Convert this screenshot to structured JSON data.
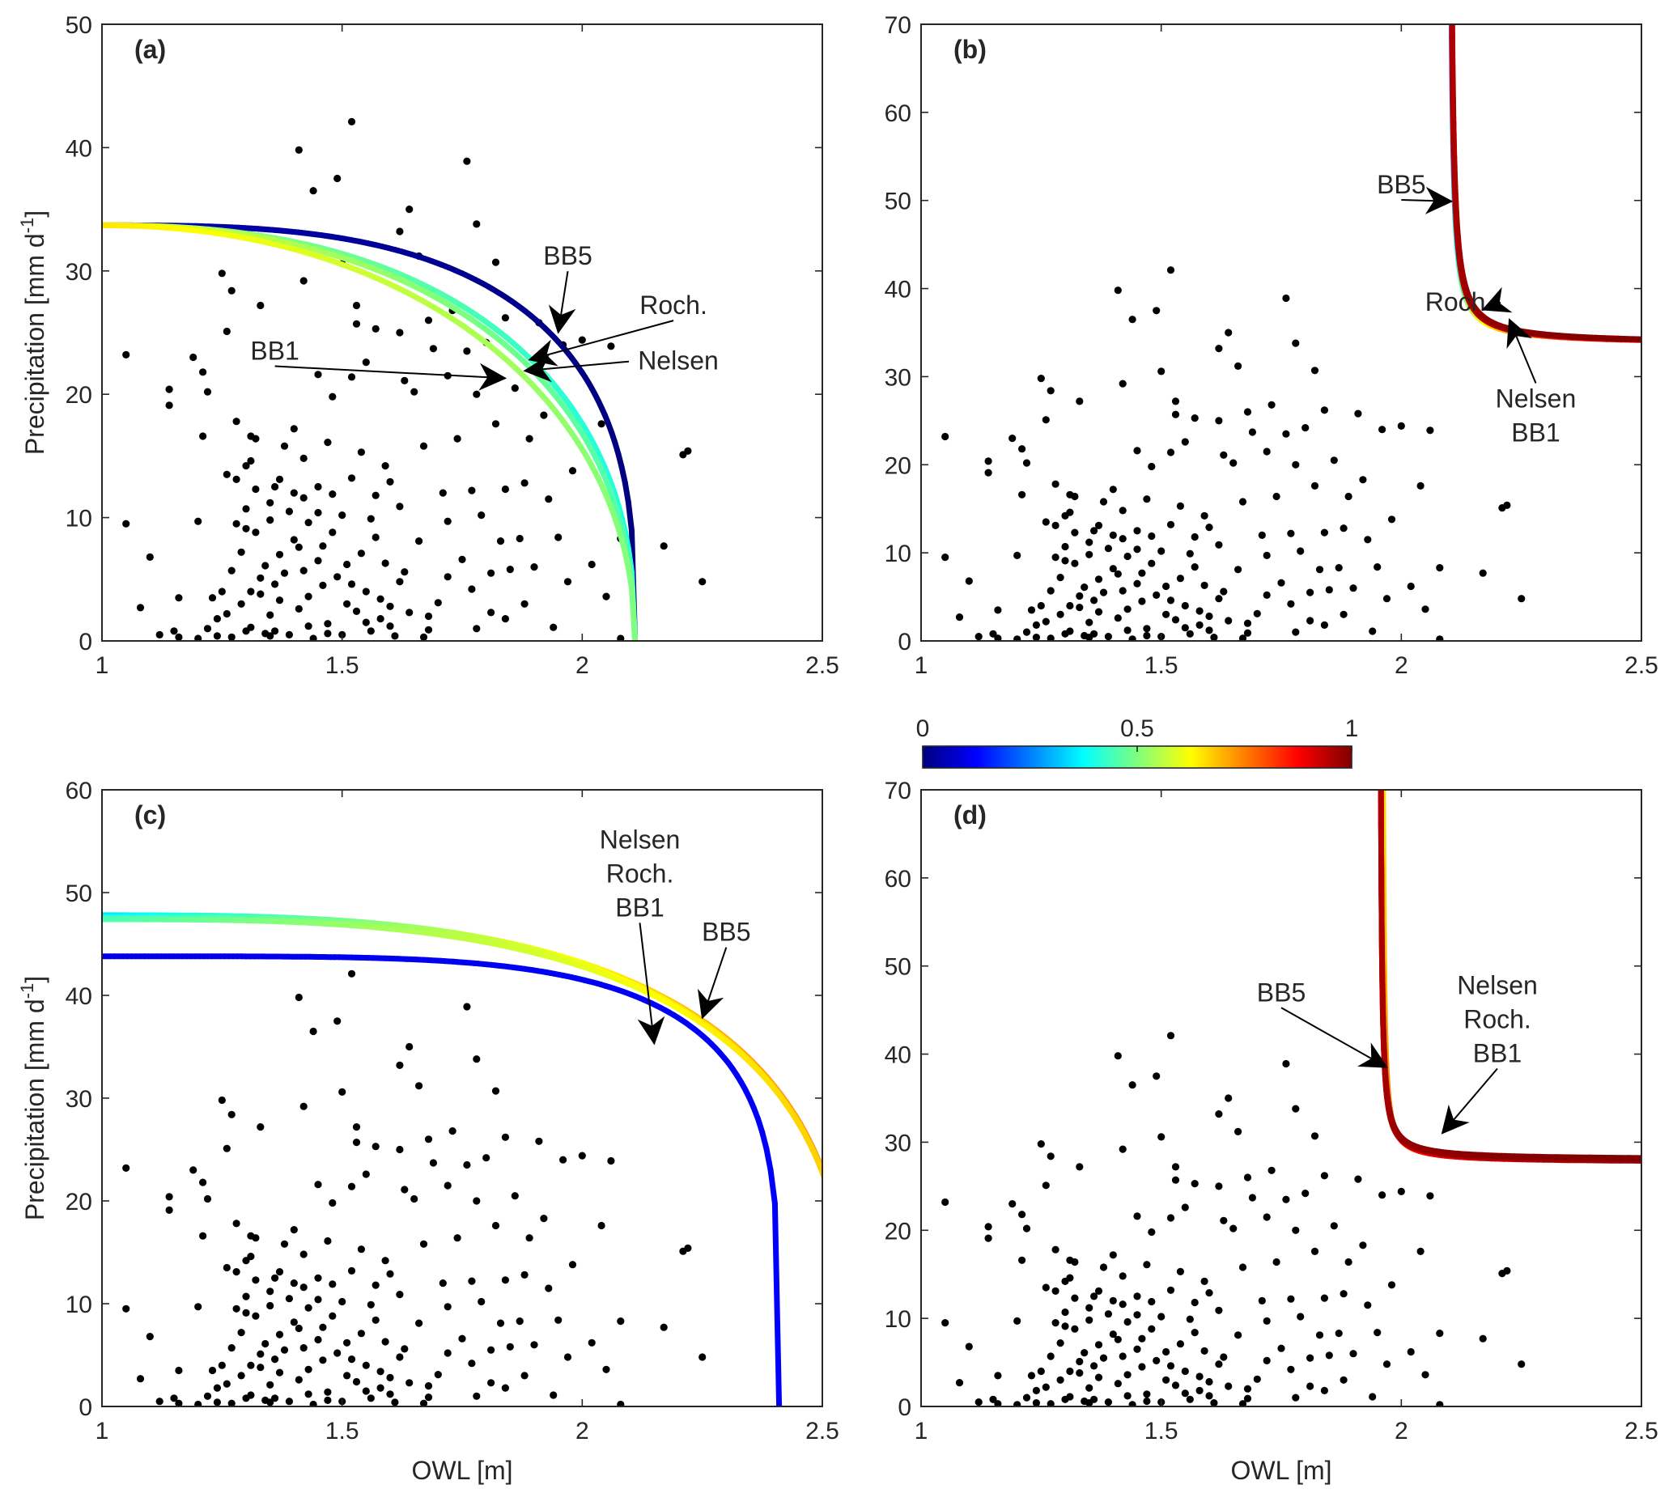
{
  "colors": {
    "points": "#000000",
    "axis": "#262626",
    "colormap": [
      "#00007f",
      "#0000ff",
      "#007fff",
      "#00ffff",
      "#7fff7f",
      "#ffff00",
      "#ff7f00",
      "#ff0000",
      "#7f0000"
    ]
  },
  "colorbar": {
    "ticks": [
      0,
      0.5,
      1
    ],
    "tick_labels": [
      "0",
      "0.5",
      "1"
    ],
    "min": 0,
    "max": 1
  },
  "chart_data": [
    {
      "id": "a",
      "type": "scatter",
      "panel_label": "(a)",
      "xlabel": "",
      "ylabel": "Precipitation [mm d",
      "ylabel_sup": "-1",
      "ylabel_close": "]",
      "xlim": [
        1,
        2.5
      ],
      "ylim": [
        0,
        50
      ],
      "xticks": [
        1,
        1.5,
        2,
        2.5
      ],
      "xtick_labels": [
        "1",
        "1.5",
        "2",
        "2.5"
      ],
      "yticks": [
        0,
        10,
        20,
        30,
        40,
        50
      ],
      "ytick_labels": [
        "0",
        "10",
        "20",
        "30",
        "40",
        "50"
      ],
      "curves": [
        {
          "name": "BB5",
          "shape": "quarter",
          "px": 2.11,
          "py": 33.7,
          "n": 3.0,
          "c_start": 0.05,
          "c_end": 0.0
        },
        {
          "name": "Roch.",
          "shape": "quarter",
          "px": 2.11,
          "py": 33.7,
          "n": 2.35,
          "c_start": 0.55,
          "c_end": 0.4
        },
        {
          "name": "Nelsen",
          "shape": "quarter",
          "px": 2.11,
          "py": 33.7,
          "n": 2.25,
          "c_start": 0.6,
          "c_end": 0.45
        },
        {
          "name": "BB1",
          "shape": "quarter",
          "px": 2.11,
          "py": 33.7,
          "n": 2.1,
          "c_start": 0.65,
          "c_end": 0.5
        }
      ],
      "annotations": [
        {
          "text": "BB5",
          "tx": 1.97,
          "ty": 30.5,
          "ax": 1.95,
          "ay": 25.0
        },
        {
          "text": "Roch.",
          "tx": 2.19,
          "ty": 26.5,
          "ax": 1.89,
          "ay": 22.8
        },
        {
          "text": "Nelsen",
          "tx": 2.2,
          "ty": 22.0,
          "ax": 1.88,
          "ay": 21.9
        },
        {
          "text": "BB1",
          "tx": 1.36,
          "ty": 22.8,
          "ax": 1.84,
          "ay": 21.3
        }
      ]
    },
    {
      "id": "b",
      "type": "scatter",
      "panel_label": "(b)",
      "xlabel": "",
      "ylabel": "",
      "xlim": [
        1,
        2.5
      ],
      "ylim": [
        0,
        70
      ],
      "xticks": [
        1,
        1.5,
        2,
        2.5
      ],
      "xtick_labels": [
        "1",
        "1.5",
        "2",
        "2.5"
      ],
      "yticks": [
        0,
        10,
        20,
        30,
        40,
        50,
        60,
        70
      ],
      "ytick_labels": [
        "0",
        "10",
        "20",
        "30",
        "40",
        "50",
        "60",
        "70"
      ],
      "curves": [
        {
          "name": "BB5",
          "shape": "hyperbola",
          "px": 2.1,
          "py": 33.7,
          "k": 0.18,
          "c_start": 0.15,
          "c_end": 0.92
        },
        {
          "name": "Roch.",
          "shape": "hyperbola",
          "px": 2.1,
          "py": 33.7,
          "k": 0.2,
          "c_start": 0.9,
          "c_end": 0.95
        },
        {
          "name": "Nelsen",
          "shape": "hyperbola",
          "px": 2.1,
          "py": 33.7,
          "k": 0.21,
          "c_start": 0.92,
          "c_end": 0.97
        },
        {
          "name": "BB1",
          "shape": "hyperbola",
          "px": 2.1,
          "py": 33.7,
          "k": 0.22,
          "c_start": 0.95,
          "c_end": 1.0
        }
      ],
      "annotations": [
        {
          "text": "BB5",
          "tx": 2.0,
          "ty": 50.8,
          "ax": 2.105,
          "ay": 49.9
        },
        {
          "text": "Roch.",
          "tx": 2.12,
          "ty": 37.5,
          "ax": 2.17,
          "ay": 37.6
        },
        {
          "text": "Nelsen",
          "text2": "BB1",
          "tx": 2.28,
          "ty": 26.5,
          "ax": 2.225,
          "ay": 36.5
        }
      ]
    },
    {
      "id": "c",
      "type": "scatter",
      "panel_label": "(c)",
      "xlabel": "OWL [m]",
      "ylabel": "Precipitation [mm d",
      "ylabel_sup": "-1",
      "ylabel_close": "]",
      "xlim": [
        1,
        2.5
      ],
      "ylim": [
        0,
        60
      ],
      "xticks": [
        1,
        1.5,
        2,
        2.5
      ],
      "xtick_labels": [
        "1",
        "1.5",
        "2",
        "2.5"
      ],
      "yticks": [
        0,
        10,
        20,
        30,
        40,
        50,
        60
      ],
      "ytick_labels": [
        "0",
        "10",
        "20",
        "30",
        "40",
        "50",
        "60"
      ],
      "curves": [
        {
          "name": "BB5",
          "shape": "quarter",
          "px": 2.41,
          "py": 43.8,
          "n": 4.5,
          "c_start": 0.1,
          "c_end": 0.12
        },
        {
          "name": "Roch.",
          "shape": "quarter",
          "px": 2.56,
          "py": 47.8,
          "n": 3.0,
          "c_start": 0.35,
          "c_end": 0.78
        },
        {
          "name": "Nelsen",
          "shape": "quarter",
          "px": 2.56,
          "py": 47.6,
          "n": 3.0,
          "c_start": 0.4,
          "c_end": 0.72
        },
        {
          "name": "BB1",
          "shape": "quarter",
          "px": 2.56,
          "py": 47.4,
          "n": 3.0,
          "c_start": 0.45,
          "c_end": 0.68
        }
      ],
      "annotations": [
        {
          "text": "Nelsen",
          "text2": "Roch.",
          "text3": "BB1",
          "tx": 2.12,
          "ty": 54.3,
          "ax": 2.15,
          "ay": 35.3
        },
        {
          "text": "BB5",
          "tx": 2.3,
          "ty": 45.3,
          "ax": 2.25,
          "ay": 37.8
        }
      ]
    },
    {
      "id": "d",
      "type": "scatter",
      "panel_label": "(d)",
      "xlabel": "OWL [m]",
      "ylabel": "",
      "xlim": [
        1,
        2.5
      ],
      "ylim": [
        0,
        70
      ],
      "xticks": [
        1,
        1.5,
        2,
        2.5
      ],
      "xtick_labels": [
        "1",
        "1.5",
        "2",
        "2.5"
      ],
      "yticks": [
        0,
        10,
        20,
        30,
        40,
        50,
        60,
        70
      ],
      "ytick_labels": [
        "0",
        "10",
        "20",
        "30",
        "40",
        "50",
        "60",
        "70"
      ],
      "curves": [
        {
          "name": "BB5",
          "shape": "hyperbola",
          "px": 1.96,
          "py": 27.7,
          "k": 0.1,
          "c_start": 0.65,
          "c_end": 0.98
        },
        {
          "name": "Roch.",
          "shape": "hyperbola",
          "px": 1.955,
          "py": 27.8,
          "k": 0.11,
          "c_start": 0.9,
          "c_end": 0.97
        },
        {
          "name": "Nelsen",
          "shape": "hyperbola",
          "px": 1.955,
          "py": 27.9,
          "k": 0.11,
          "c_start": 0.92,
          "c_end": 0.99
        },
        {
          "name": "BB1",
          "shape": "hyperbola",
          "px": 1.955,
          "py": 28.0,
          "k": 0.115,
          "c_start": 0.95,
          "c_end": 1.0
        }
      ],
      "annotations": [
        {
          "text": "BB5",
          "tx": 1.75,
          "ty": 46.0,
          "ax": 1.97,
          "ay": 38.5
        },
        {
          "text": "Nelsen",
          "text2": "Roch.",
          "text3": "BB1",
          "tx": 2.2,
          "ty": 46.8,
          "ax": 2.085,
          "ay": 31.0
        }
      ]
    }
  ],
  "scatter_points": [
    [
      1.05,
      23.2
    ],
    [
      1.05,
      9.5
    ],
    [
      1.08,
      2.7
    ],
    [
      1.1,
      6.8
    ],
    [
      1.12,
      0.5
    ],
    [
      1.14,
      20.4
    ],
    [
      1.14,
      19.1
    ],
    [
      1.15,
      0.8
    ],
    [
      1.16,
      3.5
    ],
    [
      1.16,
      0.3
    ],
    [
      1.19,
      23.0
    ],
    [
      1.2,
      9.7
    ],
    [
      1.21,
      16.6
    ],
    [
      1.21,
      21.8
    ],
    [
      1.22,
      20.2
    ],
    [
      1.22,
      1.0
    ],
    [
      1.23,
      3.5
    ],
    [
      1.24,
      1.8
    ],
    [
      1.24,
      0.4
    ],
    [
      1.25,
      29.8
    ],
    [
      1.25,
      4.0
    ],
    [
      1.26,
      25.1
    ],
    [
      1.26,
      13.5
    ],
    [
      1.27,
      28.4
    ],
    [
      1.27,
      0.3
    ],
    [
      1.27,
      5.7
    ],
    [
      1.28,
      13.1
    ],
    [
      1.28,
      9.5
    ],
    [
      1.28,
      17.8
    ],
    [
      1.29,
      3.0
    ],
    [
      1.29,
      7.2
    ],
    [
      1.3,
      9.1
    ],
    [
      1.3,
      14.2
    ],
    [
      1.3,
      0.8
    ],
    [
      1.31,
      16.6
    ],
    [
      1.31,
      14.6
    ],
    [
      1.31,
      4.0
    ],
    [
      1.31,
      1.1
    ],
    [
      1.32,
      12.3
    ],
    [
      1.32,
      8.8
    ],
    [
      1.32,
      16.4
    ],
    [
      1.33,
      27.2
    ],
    [
      1.33,
      3.8
    ],
    [
      1.34,
      6.1
    ],
    [
      1.34,
      0.6
    ],
    [
      1.35,
      11.2
    ],
    [
      1.35,
      9.8
    ],
    [
      1.35,
      2.1
    ],
    [
      1.36,
      4.6
    ],
    [
      1.36,
      0.8
    ],
    [
      1.37,
      13.1
    ],
    [
      1.37,
      7.0
    ],
    [
      1.38,
      15.8
    ],
    [
      1.38,
      5.5
    ],
    [
      1.39,
      0.5
    ],
    [
      1.39,
      10.5
    ],
    [
      1.4,
      12.0
    ],
    [
      1.4,
      17.2
    ],
    [
      1.41,
      2.6
    ],
    [
      1.41,
      7.6
    ],
    [
      1.41,
      39.8
    ],
    [
      1.42,
      29.2
    ],
    [
      1.42,
      11.6
    ],
    [
      1.42,
      5.7
    ],
    [
      1.43,
      3.6
    ],
    [
      1.43,
      9.6
    ],
    [
      1.44,
      0.2
    ],
    [
      1.44,
      36.5
    ],
    [
      1.45,
      21.6
    ],
    [
      1.45,
      10.4
    ],
    [
      1.45,
      12.5
    ],
    [
      1.46,
      4.5
    ],
    [
      1.46,
      7.7
    ],
    [
      1.47,
      16.1
    ],
    [
      1.47,
      1.4
    ],
    [
      1.48,
      8.8
    ],
    [
      1.48,
      19.8
    ],
    [
      1.49,
      37.5
    ],
    [
      1.49,
      5.2
    ],
    [
      1.5,
      30.6
    ],
    [
      1.5,
      0.5
    ],
    [
      1.5,
      10.2
    ],
    [
      1.51,
      3.0
    ],
    [
      1.51,
      6.2
    ],
    [
      1.52,
      42.1
    ],
    [
      1.52,
      21.4
    ],
    [
      1.52,
      13.2
    ],
    [
      1.53,
      27.2
    ],
    [
      1.53,
      25.7
    ],
    [
      1.53,
      2.4
    ],
    [
      1.54,
      7.1
    ],
    [
      1.55,
      4.0
    ],
    [
      1.55,
      22.6
    ],
    [
      1.56,
      9.9
    ],
    [
      1.56,
      0.8
    ],
    [
      1.57,
      25.3
    ],
    [
      1.57,
      11.8
    ],
    [
      1.58,
      3.4
    ],
    [
      1.58,
      1.8
    ],
    [
      1.59,
      14.2
    ],
    [
      1.59,
      6.3
    ],
    [
      1.6,
      1.2
    ],
    [
      1.61,
      0.4
    ],
    [
      1.62,
      33.2
    ],
    [
      1.62,
      25.0
    ],
    [
      1.62,
      10.9
    ],
    [
      1.63,
      5.6
    ],
    [
      1.63,
      21.1
    ],
    [
      1.64,
      35.0
    ],
    [
      1.64,
      2.3
    ],
    [
      1.65,
      20.2
    ],
    [
      1.66,
      8.1
    ],
    [
      1.66,
      31.2
    ],
    [
      1.67,
      15.8
    ],
    [
      1.68,
      0.9
    ],
    [
      1.68,
      26.0
    ],
    [
      1.69,
      23.7
    ],
    [
      1.7,
      3.1
    ],
    [
      1.71,
      12.0
    ],
    [
      1.72,
      21.5
    ],
    [
      1.72,
      9.7
    ],
    [
      1.73,
      26.8
    ],
    [
      1.74,
      16.4
    ],
    [
      1.75,
      6.6
    ],
    [
      1.76,
      38.9
    ],
    [
      1.76,
      23.5
    ],
    [
      1.77,
      12.2
    ],
    [
      1.77,
      4.2
    ],
    [
      1.78,
      33.8
    ],
    [
      1.78,
      20.0
    ],
    [
      1.79,
      10.2
    ],
    [
      1.8,
      24.2
    ],
    [
      1.81,
      5.5
    ],
    [
      1.81,
      2.3
    ],
    [
      1.82,
      30.7
    ],
    [
      1.82,
      17.6
    ],
    [
      1.83,
      8.1
    ],
    [
      1.84,
      26.2
    ],
    [
      1.84,
      12.3
    ],
    [
      1.85,
      5.8
    ],
    [
      1.86,
      20.5
    ],
    [
      1.87,
      8.3
    ],
    [
      1.88,
      3.0
    ],
    [
      1.89,
      16.4
    ],
    [
      1.9,
      6.0
    ],
    [
      1.91,
      25.8
    ],
    [
      1.92,
      18.3
    ],
    [
      1.93,
      11.5
    ],
    [
      1.94,
      1.1
    ],
    [
      1.95,
      8.4
    ],
    [
      1.96,
      24.0
    ],
    [
      1.97,
      4.8
    ],
    [
      1.98,
      13.8
    ],
    [
      2.0,
      24.4
    ],
    [
      2.02,
      6.2
    ],
    [
      2.04,
      17.6
    ],
    [
      2.05,
      3.6
    ],
    [
      2.06,
      23.9
    ],
    [
      2.08,
      8.3
    ],
    [
      2.08,
      0.2
    ],
    [
      2.17,
      7.7
    ],
    [
      2.21,
      15.1
    ],
    [
      2.22,
      15.4
    ],
    [
      2.25,
      4.8
    ],
    [
      1.35,
      0.4
    ],
    [
      1.43,
      1.2
    ],
    [
      1.47,
      0.6
    ],
    [
      1.55,
      1.5
    ],
    [
      1.6,
      2.8
    ],
    [
      1.67,
      0.3
    ],
    [
      1.2,
      0.2
    ],
    [
      1.26,
      2.2
    ],
    [
      1.33,
      5.1
    ],
    [
      1.37,
      3.3
    ],
    [
      1.4,
      8.2
    ],
    [
      1.45,
      6.5
    ],
    [
      1.52,
      4.6
    ],
    [
      1.57,
      8.4
    ],
    [
      1.62,
      4.8
    ],
    [
      1.68,
      2.0
    ],
    [
      1.72,
      5.2
    ],
    [
      1.78,
      1.0
    ],
    [
      1.84,
      1.8
    ],
    [
      1.88,
      12.8
    ],
    [
      1.3,
      10.7
    ],
    [
      1.36,
      12.5
    ],
    [
      1.42,
      14.8
    ],
    [
      1.48,
      11.9
    ],
    [
      1.54,
      15.3
    ],
    [
      1.6,
      12.9
    ]
  ]
}
